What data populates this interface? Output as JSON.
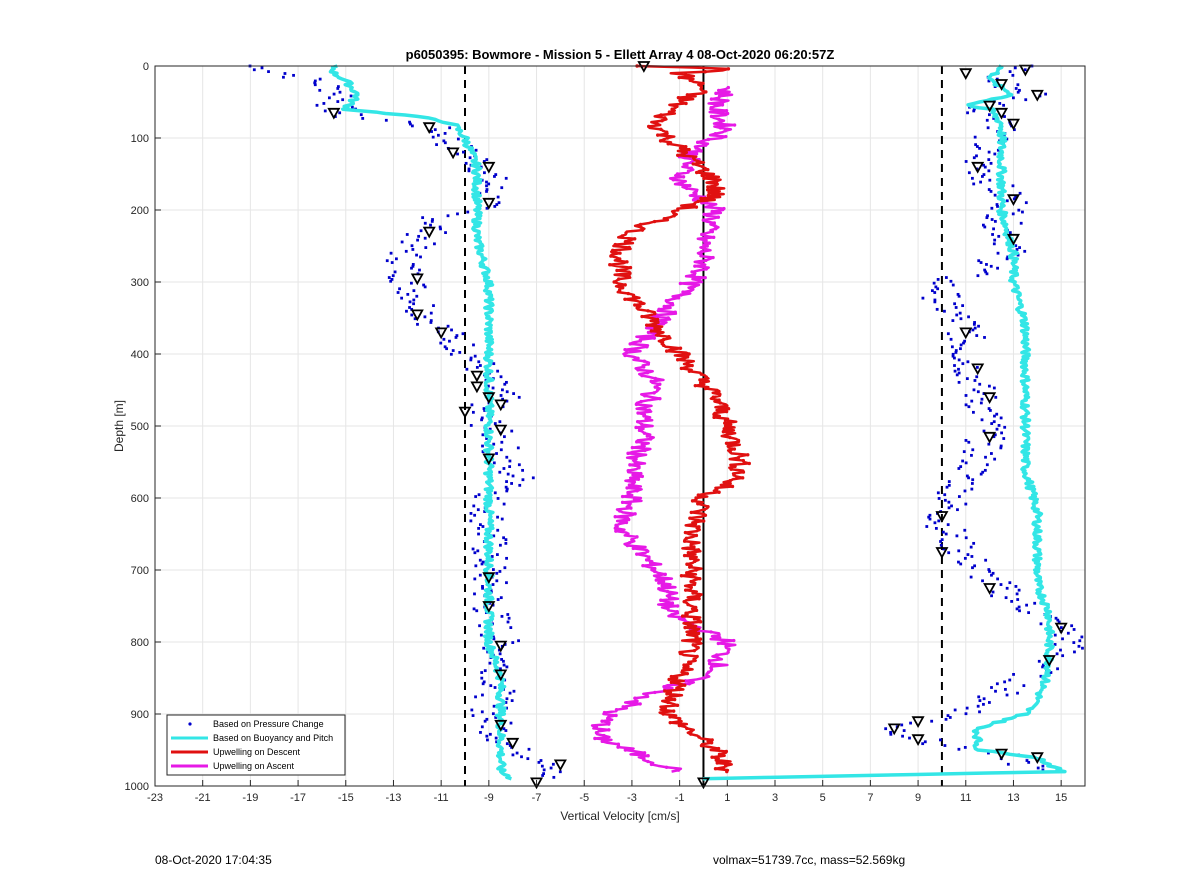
{
  "footer": {
    "left": "08-Oct-2020 17:04:35",
    "right": "volmax=51739.7cc, mass=52.569kg"
  },
  "colors": {
    "pressure": "#0000cc",
    "buoyancy": "#33e6e6",
    "descent": "#e01010",
    "ascent": "#e619e6",
    "grid": "#e6e6e6"
  },
  "chart_data": {
    "type": "line",
    "title": "p6050395: Bowmore - Mission 5 - Ellett Array 4 08-Oct-2020 06:20:57Z",
    "xlabel": "Vertical Velocity [cm/s]",
    "ylabel": "Depth [m]",
    "xlim": [
      -23,
      16
    ],
    "ylim": [
      0,
      1000
    ],
    "y_reversed": true,
    "grid": true,
    "x_ticks": [
      -23,
      -21,
      -19,
      -17,
      -15,
      -13,
      -11,
      -9,
      -7,
      -5,
      -3,
      -1,
      1,
      3,
      5,
      7,
      9,
      11,
      13,
      15
    ],
    "y_ticks": [
      0,
      100,
      200,
      300,
      400,
      500,
      600,
      700,
      800,
      900,
      1000
    ],
    "legend_position": "bottom-left",
    "reference_lines": [
      {
        "x": -10,
        "style": "dashed"
      },
      {
        "x": 10,
        "style": "dashed"
      },
      {
        "x": 0,
        "style": "solid"
      }
    ],
    "series": [
      {
        "name": "Based on Pressure Change",
        "style": "dots",
        "descent": {
          "depth": [
            0,
            10,
            25,
            40,
            55,
            70,
            80,
            90,
            110,
            130,
            150,
            170,
            190,
            210,
            230,
            260,
            290,
            320,
            350,
            380,
            410,
            440,
            460,
            480,
            500,
            520,
            550,
            580,
            600,
            650,
            700,
            750,
            800,
            850,
            900,
            930,
            950,
            970,
            990
          ],
          "v": [
            -19,
            -17.5,
            -16,
            -15,
            -15.5,
            -15,
            -12,
            -11,
            -10.5,
            -9.5,
            -9,
            -9,
            -9,
            -11,
            -11.5,
            -12.5,
            -12.5,
            -12,
            -11.5,
            -10.5,
            -9.5,
            -9,
            -8.5,
            -9.5,
            -9,
            -8.5,
            -8.5,
            -7.5,
            -9,
            -9,
            -9,
            -9,
            -8.5,
            -8.5,
            -9,
            -8.5,
            -8,
            -6,
            -7
          ]
        },
        "ascent": {
          "depth": [
            0,
            20,
            40,
            60,
            80,
            100,
            130,
            160,
            190,
            220,
            250,
            280,
            300,
            330,
            360,
            400,
            450,
            500,
            550,
            600,
            630,
            660,
            700,
            740,
            780,
            800,
            830,
            860,
            880,
            900,
            920,
            940,
            960,
            980
          ],
          "v": [
            13.5,
            12,
            14,
            11.5,
            13,
            12,
            11.5,
            12,
            13,
            12.5,
            13,
            12,
            10,
            10,
            11,
            11,
            11.5,
            12,
            11.5,
            10.5,
            10,
            10.5,
            11.5,
            13,
            15,
            15.5,
            14.5,
            13,
            12,
            11,
            8,
            9.5,
            13,
            14
          ]
        }
      },
      {
        "name": "Based on Buoyancy and Pitch",
        "style": "line",
        "descent": {
          "depth": [
            0,
            10,
            20,
            40,
            60,
            70,
            80,
            100,
            140,
            180,
            200,
            240,
            300,
            400,
            460,
            480,
            520,
            560,
            600,
            650,
            700,
            750,
            800,
            850,
            900,
            950,
            980,
            990
          ],
          "v": [
            -15.5,
            -15.5,
            -15,
            -14.5,
            -15,
            -12,
            -10.5,
            -10,
            -9.5,
            -9.5,
            -9.5,
            -9.5,
            -9,
            -9,
            -9,
            -9,
            -9,
            -9,
            -9,
            -9,
            -9,
            -9,
            -9,
            -8.5,
            -8.5,
            -8.5,
            -8.5,
            -8
          ]
        },
        "ascent": {
          "depth": [
            0,
            20,
            40,
            55,
            60,
            80,
            120,
            200,
            260,
            300,
            360,
            400,
            450,
            500,
            560,
            620,
            680,
            720,
            760,
            800,
            840,
            880,
            900,
            920,
            950,
            960,
            980,
            990
          ],
          "v": [
            12.5,
            12,
            13,
            11,
            12,
            12.5,
            12.5,
            12.5,
            13,
            13,
            13.5,
            13.5,
            13.5,
            13.5,
            13.5,
            14,
            14,
            14,
            14.5,
            14.5,
            14.5,
            14,
            13.5,
            11.5,
            11.5,
            14,
            15,
            0
          ]
        }
      },
      {
        "name": "Upwelling on Descent",
        "style": "line-markers",
        "depth": [
          0,
          5,
          10,
          30,
          50,
          80,
          100,
          130,
          160,
          180,
          200,
          230,
          260,
          300,
          340,
          380,
          420,
          460,
          500,
          540,
          570,
          600,
          650,
          700,
          750,
          800,
          850,
          900,
          950,
          980
        ],
        "v": [
          -2.5,
          1.5,
          -1,
          0,
          -1,
          -2,
          -1.5,
          -0.5,
          0.5,
          0.5,
          -1,
          -3,
          -3.5,
          -3.5,
          -2.5,
          -1.5,
          -0.5,
          0.5,
          1,
          1.5,
          1.5,
          0,
          -0.5,
          -0.5,
          -0.5,
          -0.5,
          -1,
          -1.5,
          0.5,
          1
        ]
      },
      {
        "name": "Upwelling on Ascent",
        "style": "line-markers",
        "depth": [
          30,
          60,
          90,
          120,
          160,
          200,
          240,
          280,
          320,
          360,
          400,
          440,
          480,
          520,
          560,
          600,
          640,
          680,
          720,
          760,
          800,
          840,
          870,
          900,
          930,
          960,
          980
        ],
        "v": [
          1,
          0.5,
          1,
          -0.5,
          -1,
          0.5,
          0,
          0,
          -1,
          -2,
          -3,
          -2,
          -2.5,
          -2.5,
          -3,
          -3,
          -3.5,
          -2.5,
          -1.5,
          -1.5,
          1,
          0.5,
          -2,
          -4,
          -4.5,
          -2.5,
          -1
        ]
      }
    ],
    "triangles": {
      "descent": [
        {
          "v": -2.5,
          "depth": 0
        },
        {
          "v": -15.5,
          "depth": 65
        },
        {
          "v": -11.5,
          "depth": 85
        },
        {
          "v": -10.5,
          "depth": 120
        },
        {
          "v": -9,
          "depth": 140
        },
        {
          "v": -9,
          "depth": 190
        },
        {
          "v": -11.5,
          "depth": 230
        },
        {
          "v": -12,
          "depth": 295
        },
        {
          "v": -12,
          "depth": 345
        },
        {
          "v": -11,
          "depth": 370
        },
        {
          "v": -9.5,
          "depth": 430
        },
        {
          "v": -9.5,
          "depth": 445
        },
        {
          "v": -9,
          "depth": 460
        },
        {
          "v": -8.5,
          "depth": 470
        },
        {
          "v": -10,
          "depth": 480
        },
        {
          "v": -8.5,
          "depth": 505
        },
        {
          "v": -9,
          "depth": 545
        },
        {
          "v": -9,
          "depth": 710
        },
        {
          "v": -9,
          "depth": 750
        },
        {
          "v": -8.5,
          "depth": 805
        },
        {
          "v": -8.5,
          "depth": 845
        },
        {
          "v": -8.5,
          "depth": 915
        },
        {
          "v": -8,
          "depth": 940
        },
        {
          "v": -6,
          "depth": 970
        },
        {
          "v": -7,
          "depth": 995
        },
        {
          "v": 0,
          "depth": 995
        }
      ],
      "ascent": [
        {
          "v": 13.5,
          "depth": 5
        },
        {
          "v": 11,
          "depth": 10
        },
        {
          "v": 12.5,
          "depth": 25
        },
        {
          "v": 14,
          "depth": 40
        },
        {
          "v": 12,
          "depth": 55
        },
        {
          "v": 12.5,
          "depth": 65
        },
        {
          "v": 13,
          "depth": 80
        },
        {
          "v": 11.5,
          "depth": 140
        },
        {
          "v": 13,
          "depth": 185
        },
        {
          "v": 13,
          "depth": 240
        },
        {
          "v": 11,
          "depth": 370
        },
        {
          "v": 11.5,
          "depth": 420
        },
        {
          "v": 12,
          "depth": 460
        },
        {
          "v": 12,
          "depth": 515
        },
        {
          "v": 10,
          "depth": 625
        },
        {
          "v": 10,
          "depth": 675
        },
        {
          "v": 12,
          "depth": 725
        },
        {
          "v": 15,
          "depth": 780
        },
        {
          "v": 14.5,
          "depth": 825
        },
        {
          "v": 9,
          "depth": 910
        },
        {
          "v": 8,
          "depth": 920
        },
        {
          "v": 9,
          "depth": 935
        },
        {
          "v": 12.5,
          "depth": 955
        },
        {
          "v": 14,
          "depth": 960
        }
      ]
    }
  }
}
